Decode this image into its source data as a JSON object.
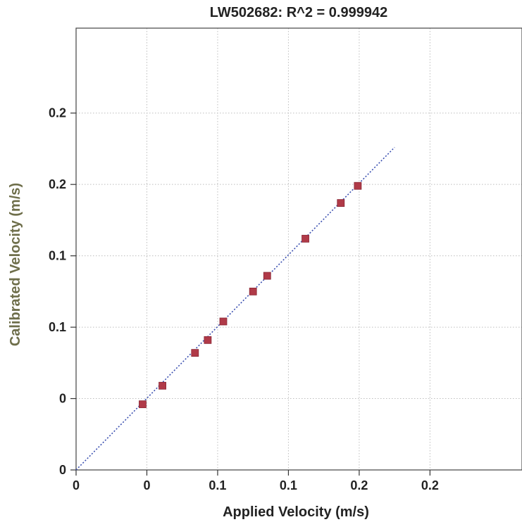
{
  "chart_data": {
    "type": "scatter",
    "title": "LW502682: R^2 = 0.999942",
    "xlabel": "Applied Velocity (m/s)",
    "ylabel": "Calibrated Velocity (m/s)",
    "xlim": [
      -0.05,
      0.265
    ],
    "ylim": [
      -0.05,
      0.2
    ],
    "x_ticks": [
      {
        "value": -0.05,
        "label": "0"
      },
      {
        "value": 0.0,
        "label": "0"
      },
      {
        "value": 0.05,
        "label": "0.1"
      },
      {
        "value": 0.1,
        "label": "0.1"
      },
      {
        "value": 0.15,
        "label": "0.2"
      },
      {
        "value": 0.2,
        "label": "0.2"
      }
    ],
    "y_ticks": [
      {
        "value": -0.05,
        "label": "0"
      },
      {
        "value": 0.0,
        "label": "0"
      },
      {
        "value": 0.05,
        "label": "0.1"
      },
      {
        "value": 0.1,
        "label": "0.1"
      },
      {
        "value": 0.15,
        "label": "0.2"
      },
      {
        "value": 0.2,
        "label": "0.2"
      }
    ],
    "grid": true,
    "series": [
      {
        "x": [
          -0.003,
          0.011,
          0.034,
          0.043,
          0.054,
          0.075,
          0.085,
          0.112,
          0.137,
          0.149
        ],
        "y": [
          -0.004,
          0.009,
          0.032,
          0.041,
          0.054,
          0.075,
          0.086,
          0.112,
          0.137,
          0.149
        ],
        "color": "#b03a48",
        "marker": "square"
      },
      {
        "type": "line",
        "x": [
          -0.05,
          0.175
        ],
        "y": [
          -0.05,
          0.176
        ],
        "color": "#3a4fb0",
        "style": "dotted"
      }
    ]
  }
}
